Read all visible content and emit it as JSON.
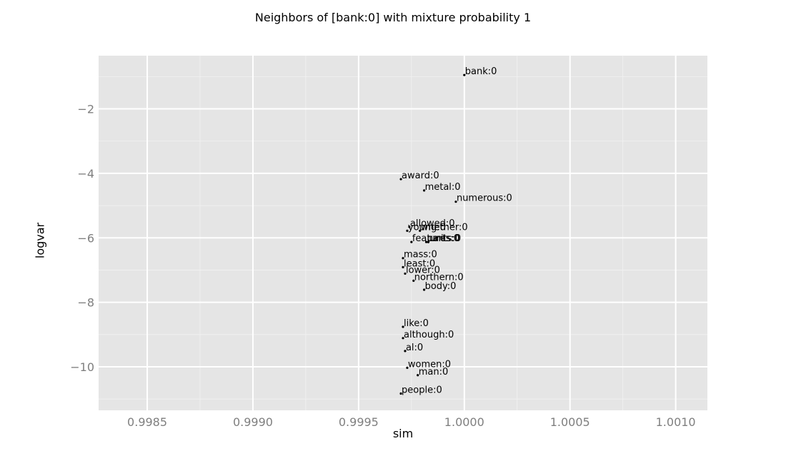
{
  "chart_data": {
    "type": "scatter",
    "title": "Neighbors of [bank:0] with mixture probability 1",
    "xlabel": "sim",
    "ylabel": "logvar",
    "xlim": [
      0.99827,
      1.00115
    ],
    "ylim": [
      -11.35,
      -0.35
    ],
    "x_ticks": [
      0.9985,
      0.999,
      0.9995,
      1.0,
      1.0005,
      1.001
    ],
    "x_tick_labels": [
      "0.9985",
      "0.9990",
      "0.9995",
      "1.0000",
      "1.0005",
      "1.0010"
    ],
    "y_ticks": [
      -10,
      -8,
      -6,
      -4,
      -2
    ],
    "y_tick_labels": [
      "−10",
      "−8",
      "−6",
      "−4",
      "−2"
    ],
    "grid": true,
    "points": [
      {
        "label": "bank:0",
        "x": 1.0,
        "y": -0.95
      },
      {
        "label": "award:0",
        "x": 0.9997,
        "y": -4.18
      },
      {
        "label": "metal:0",
        "x": 0.99981,
        "y": -4.53
      },
      {
        "label": "numerous:0",
        "x": 0.99996,
        "y": -4.88
      },
      {
        "label": "allowed:0",
        "x": 0.99974,
        "y": -5.66
      },
      {
        "label": "young:0",
        "x": 0.99973,
        "y": -5.78
      },
      {
        "label": "whether:0",
        "x": 0.99979,
        "y": -5.78
      },
      {
        "label": "features:0",
        "x": 0.99975,
        "y": -6.13
      },
      {
        "label": "parts:0",
        "x": 0.99982,
        "y": -6.13
      },
      {
        "label": "units:0",
        "x": 0.99983,
        "y": -6.13
      },
      {
        "label": "mass:0",
        "x": 0.99971,
        "y": -6.63
      },
      {
        "label": "least:0",
        "x": 0.99971,
        "y": -6.91
      },
      {
        "label": "lower:0",
        "x": 0.99972,
        "y": -7.11
      },
      {
        "label": "northern:0",
        "x": 0.99976,
        "y": -7.33
      },
      {
        "label": "body:0",
        "x": 0.99981,
        "y": -7.61
      },
      {
        "label": "like:0",
        "x": 0.99971,
        "y": -8.76
      },
      {
        "label": "although:0",
        "x": 0.99971,
        "y": -9.11
      },
      {
        "label": "al:0",
        "x": 0.99972,
        "y": -9.51
      },
      {
        "label": "women:0",
        "x": 0.99973,
        "y": -10.03
      },
      {
        "label": "man:0",
        "x": 0.99978,
        "y": -10.26
      },
      {
        "label": "people:0",
        "x": 0.9997,
        "y": -10.83
      }
    ]
  }
}
